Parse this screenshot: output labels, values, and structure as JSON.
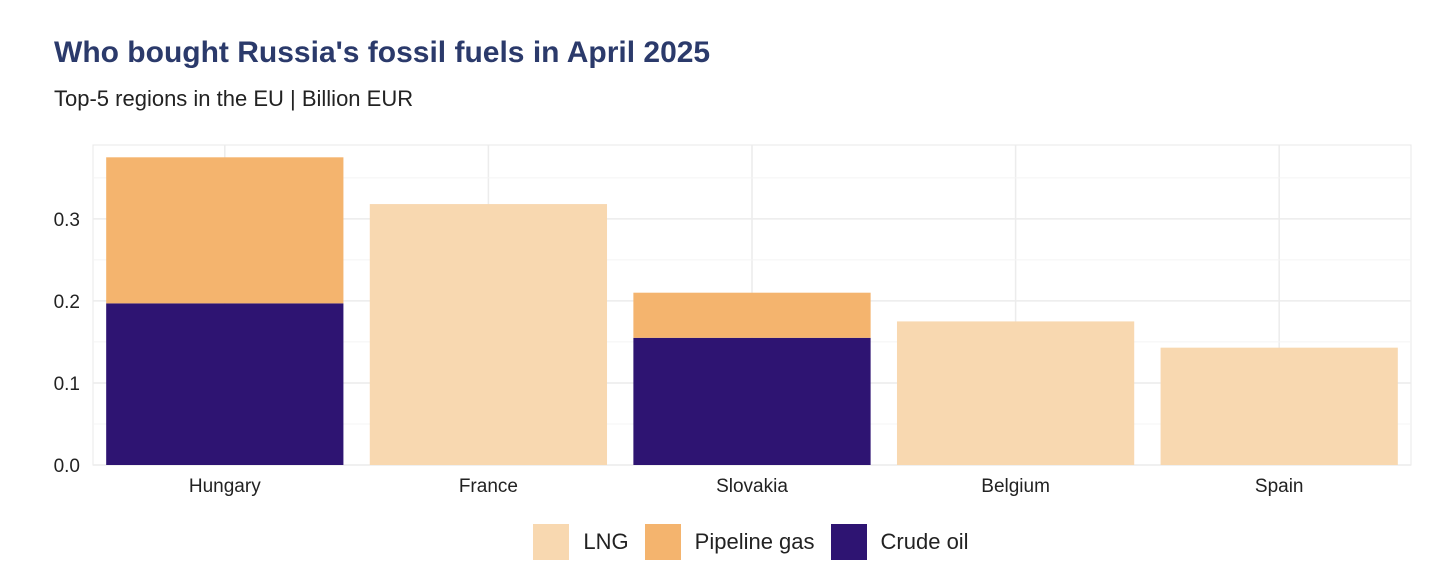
{
  "chart_data": {
    "type": "bar",
    "stacked": true,
    "title": "Who bought Russia's fossil fuels in April 2025",
    "subtitle": "Top-5 regions in the EU | Billion EUR",
    "xlabel": "",
    "ylabel": "",
    "categories": [
      "Hungary",
      "France",
      "Slovakia",
      "Belgium",
      "Spain"
    ],
    "series": [
      {
        "name": "Crude oil",
        "color": "#2e1472",
        "values": [
          0.197,
          0,
          0.155,
          0,
          0
        ]
      },
      {
        "name": "Pipeline gas",
        "color": "#f4b46e",
        "values": [
          0.178,
          0,
          0.055,
          0,
          0
        ]
      },
      {
        "name": "LNG",
        "color": "#f8d8b0",
        "values": [
          0,
          0.318,
          0,
          0.175,
          0.143
        ]
      }
    ],
    "legend_order": [
      "LNG",
      "Pipeline gas",
      "Crude oil"
    ],
    "yticks": [
      "0.0",
      "0.1",
      "0.2",
      "0.3"
    ],
    "ytick_values": [
      0,
      0.1,
      0.2,
      0.3
    ],
    "ylim": [
      0,
      0.39
    ],
    "grid": true,
    "legend_position": "bottom"
  }
}
